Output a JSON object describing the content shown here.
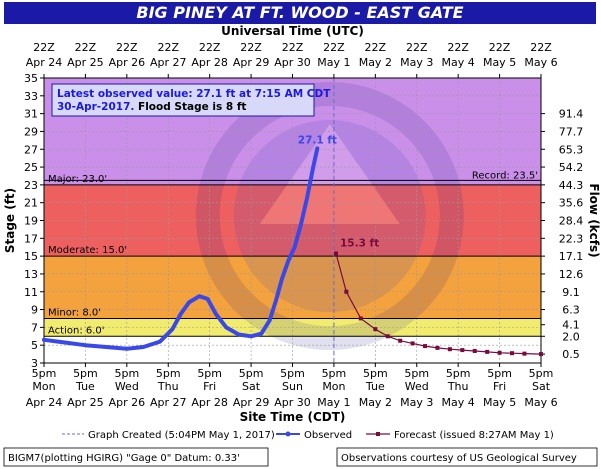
{
  "title": "BIG PINEY AT FT. WOOD - EAST GATE",
  "top_axis_title": "Universal Time (UTC)",
  "bottom_axis_title": "Site Time (CDT)",
  "y_left_title": "Stage (ft)",
  "y_right_title": "Flow (kcfs)",
  "info": {
    "line1": "Latest observed value: 27.1 ft at 7:15 AM CDT",
    "line2_date": "30-Apr-2017.",
    "line2_rest": " Flood Stage is 8 ft"
  },
  "legend": {
    "graph_created": "Graph Created (5:04PM May 1, 2017)",
    "observed": "Observed",
    "forecast": "Forecast (issued 8:27AM May 1)"
  },
  "footer": {
    "left": "BIGM7(plotting HGIRG) \"Gage 0\" Datum: 0.33'",
    "right": "Observations courtesy of US Geological Survey"
  },
  "colors": {
    "major": "#ca8fe8",
    "moderate": "#ee6060",
    "minor": "#f4a23e",
    "action": "#f2ec6e",
    "normal": "#ffffff",
    "observed": "#3a48e8",
    "forecast": "#7a0a3e",
    "banner": "#1a1aa6"
  },
  "chart_data": {
    "type": "line",
    "ylim": [
      3,
      35
    ],
    "y_ticks": [
      3,
      5,
      7,
      9,
      11,
      13,
      15,
      17,
      19,
      21,
      23,
      25,
      27,
      29,
      31,
      33,
      35
    ],
    "flow_ticks": [
      {
        "stage": 4,
        "label": "0.5"
      },
      {
        "stage": 6,
        "label": "2.0"
      },
      {
        "stage": 7.3,
        "label": "4.1"
      },
      {
        "stage": 9,
        "label": "6.3"
      },
      {
        "stage": 11,
        "label": "9.1"
      },
      {
        "stage": 13,
        "label": "12.6"
      },
      {
        "stage": 15,
        "label": "17.1"
      },
      {
        "stage": 17,
        "label": "22.3"
      },
      {
        "stage": 19,
        "label": "28.4"
      },
      {
        "stage": 21,
        "label": "35.6"
      },
      {
        "stage": 23,
        "label": "44.3"
      },
      {
        "stage": 25,
        "label": "54.2"
      },
      {
        "stage": 27,
        "label": "65.3"
      },
      {
        "stage": 29,
        "label": "77.7"
      },
      {
        "stage": 31,
        "label": "91.4"
      }
    ],
    "x_range_days": [
      0,
      12
    ],
    "bottom_ticks": [
      {
        "d": 0,
        "time": "5pm",
        "day": "Mon",
        "date": "Apr 24"
      },
      {
        "d": 1,
        "time": "5pm",
        "day": "Tue",
        "date": "Apr 25"
      },
      {
        "d": 2,
        "time": "5pm",
        "day": "Wed",
        "date": "Apr 26"
      },
      {
        "d": 3,
        "time": "5pm",
        "day": "Thu",
        "date": "Apr 27"
      },
      {
        "d": 4,
        "time": "5pm",
        "day": "Fri",
        "date": "Apr 28"
      },
      {
        "d": 5,
        "time": "5pm",
        "day": "Sat",
        "date": "Apr 29"
      },
      {
        "d": 6,
        "time": "5pm",
        "day": "Sun",
        "date": "Apr 30"
      },
      {
        "d": 7,
        "time": "5pm",
        "day": "Mon",
        "date": "May 1"
      },
      {
        "d": 8,
        "time": "5pm",
        "day": "Tue",
        "date": "May 2"
      },
      {
        "d": 9,
        "time": "5pm",
        "day": "Wed",
        "date": "May 3"
      },
      {
        "d": 10,
        "time": "5pm",
        "day": "Thu",
        "date": "May 4"
      },
      {
        "d": 11,
        "time": "5pm",
        "day": "Fri",
        "date": "May 5"
      },
      {
        "d": 12,
        "time": "5pm",
        "day": "Sat",
        "date": "May 6"
      }
    ],
    "top_ticks": [
      {
        "d": 0,
        "time": "22Z",
        "date": "Apr 24"
      },
      {
        "d": 1,
        "time": "22Z",
        "date": "Apr 25"
      },
      {
        "d": 2,
        "time": "22Z",
        "date": "Apr 26"
      },
      {
        "d": 3,
        "time": "22Z",
        "date": "Apr 27"
      },
      {
        "d": 4,
        "time": "22Z",
        "date": "Apr 28"
      },
      {
        "d": 5,
        "time": "22Z",
        "date": "Apr 29"
      },
      {
        "d": 6,
        "time": "22Z",
        "date": "Apr 30"
      },
      {
        "d": 7,
        "time": "22Z",
        "date": "May 1"
      },
      {
        "d": 8,
        "time": "22Z",
        "date": "May 2"
      },
      {
        "d": 9,
        "time": "22Z",
        "date": "May 3"
      },
      {
        "d": 10,
        "time": "22Z",
        "date": "May 4"
      },
      {
        "d": 11,
        "time": "22Z",
        "date": "May 5"
      },
      {
        "d": 12,
        "time": "22Z",
        "date": "May 6"
      }
    ],
    "flood_categories": [
      {
        "name": "Major",
        "label": "Major: 23.0'",
        "stage": 23.0,
        "color": "#ca8fe8"
      },
      {
        "name": "Moderate",
        "label": "Moderate: 15.0'",
        "stage": 15.0,
        "color": "#ee6060"
      },
      {
        "name": "Minor",
        "label": "Minor: 8.0'",
        "stage": 8.0,
        "color": "#f4a23e"
      },
      {
        "name": "Action",
        "label": "Action: 6.0'",
        "stage": 6.0,
        "color": "#f2ec6e"
      }
    ],
    "record": {
      "label": "Record: 23.5'",
      "stage": 23.5
    },
    "graph_created_day": 7.0,
    "observed": {
      "name": "Observed",
      "points": [
        [
          0.0,
          5.6
        ],
        [
          0.5,
          5.3
        ],
        [
          1.0,
          5.0
        ],
        [
          1.5,
          4.8
        ],
        [
          2.0,
          4.6
        ],
        [
          2.4,
          4.8
        ],
        [
          2.8,
          5.4
        ],
        [
          3.1,
          6.8
        ],
        [
          3.3,
          8.5
        ],
        [
          3.5,
          9.8
        ],
        [
          3.75,
          10.5
        ],
        [
          3.95,
          10.2
        ],
        [
          4.15,
          8.5
        ],
        [
          4.4,
          7.0
        ],
        [
          4.7,
          6.2
        ],
        [
          5.0,
          6.0
        ],
        [
          5.25,
          6.3
        ],
        [
          5.45,
          7.8
        ],
        [
          5.6,
          10.0
        ],
        [
          5.75,
          12.5
        ],
        [
          5.9,
          14.5
        ],
        [
          6.05,
          16.0
        ],
        [
          6.2,
          18.5
        ],
        [
          6.35,
          21.5
        ],
        [
          6.5,
          25.0
        ],
        [
          6.6,
          27.1
        ]
      ],
      "peak_label": "27.1 ft",
      "peak_index": 25
    },
    "forecast": {
      "name": "Forecast",
      "points": [
        [
          7.05,
          15.3
        ],
        [
          7.3,
          11.0
        ],
        [
          7.65,
          8.0
        ],
        [
          8.0,
          6.8
        ],
        [
          8.3,
          6.0
        ],
        [
          8.6,
          5.5
        ],
        [
          8.9,
          5.2
        ],
        [
          9.2,
          4.9
        ],
        [
          9.5,
          4.7
        ],
        [
          9.8,
          4.55
        ],
        [
          10.1,
          4.45
        ],
        [
          10.4,
          4.35
        ],
        [
          10.7,
          4.25
        ],
        [
          11.0,
          4.15
        ],
        [
          11.3,
          4.1
        ],
        [
          11.6,
          4.05
        ],
        [
          12.0,
          4.0
        ]
      ],
      "first_label": "15.3 ft"
    }
  }
}
